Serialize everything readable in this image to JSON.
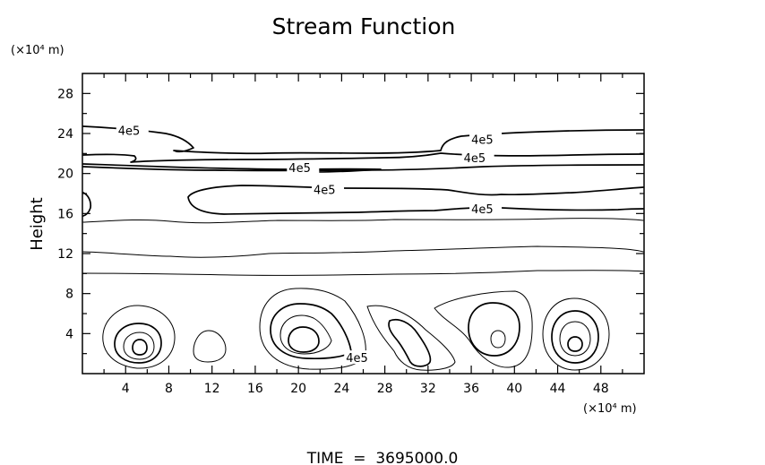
{
  "chart_data": {
    "type": "contour",
    "title": "Stream Function",
    "xlabel": "",
    "ylabel": "Height",
    "x_unit": "(×10⁴ m)",
    "y_unit": "(×10⁴ m)",
    "xlim": [
      0,
      52
    ],
    "ylim": [
      0,
      30
    ],
    "x_ticks": [
      4,
      8,
      12,
      16,
      20,
      24,
      28,
      32,
      36,
      40,
      44,
      48
    ],
    "y_ticks": [
      4,
      8,
      12,
      16,
      20,
      24,
      28
    ],
    "contour_label": "4e5",
    "label_positions": [
      {
        "x": 3.3,
        "y": 24.3
      },
      {
        "x": 19.1,
        "y": 20.6
      },
      {
        "x": 21.4,
        "y": 18.4
      },
      {
        "x": 36.0,
        "y": 23.4
      },
      {
        "x": 35.3,
        "y": 21.6
      },
      {
        "x": 36.0,
        "y": 16.5
      },
      {
        "x": 24.4,
        "y": 1.6
      }
    ],
    "grid": false,
    "footer": "TIME  =  3695000.0"
  }
}
